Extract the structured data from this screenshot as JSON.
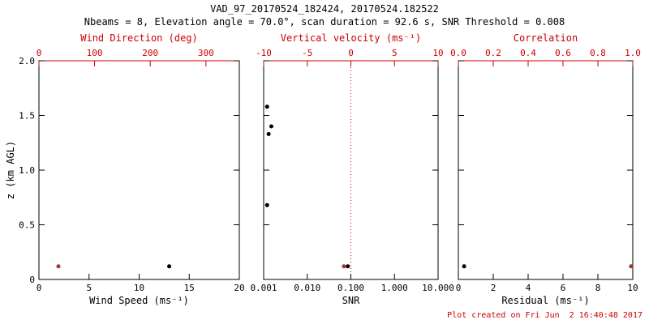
{
  "title": "VAD_97_20170524_182424, 20170524.182522",
  "subtitle": "Nbeams = 8, Elevation angle = 70.0°, scan duration = 92.6 s, SNR Threshold = 0.008",
  "footer_note": "Plot created on Fri Jun  2 16:40:48 2017",
  "colors": {
    "black": "#000000",
    "axis_red": "#cc0000",
    "point_red": "#9e3b2b",
    "background": "#ffffff"
  },
  "chart_data": [
    {
      "type": "scatter",
      "panel": "wind",
      "ylabel": "z (km AGL)",
      "ylim": [
        0,
        2
      ],
      "ytick_values": [
        0,
        0.5,
        1.0,
        1.5,
        2.0
      ],
      "ytick_labels": [
        "0",
        "0.5",
        "1.0",
        "1.5",
        "2.0"
      ],
      "show_ytick_labels": true,
      "grid": false,
      "bottom_axis": {
        "label": "Wind Speed (ms⁻¹)",
        "lim": [
          0,
          20
        ],
        "scale": "linear",
        "ticks": [
          0,
          5,
          10,
          15,
          20
        ],
        "tick_labels": [
          "0",
          "5",
          "10",
          "15",
          "20"
        ]
      },
      "top_axis": {
        "label": "Wind Direction (deg)",
        "lim": [
          0,
          360
        ],
        "scale": "linear",
        "ticks": [
          0,
          100,
          200,
          300
        ],
        "tick_labels": [
          "0",
          "100",
          "200",
          "300"
        ]
      },
      "series": [
        {
          "name": "wind-speed",
          "axis": "bottom",
          "color_key": "black",
          "points": [
            {
              "x": 13.0,
              "z": 0.12
            }
          ]
        },
        {
          "name": "wind-direction",
          "axis": "top",
          "color_key": "point_red",
          "points": [
            {
              "x": 35,
              "z": 0.12
            }
          ]
        }
      ]
    },
    {
      "type": "scatter",
      "panel": "snr",
      "ylabel": "",
      "ylim": [
        0,
        2
      ],
      "ytick_values": [
        0,
        0.5,
        1.0,
        1.5,
        2.0
      ],
      "ytick_labels": [
        "0",
        "0.5",
        "1.0",
        "1.5",
        "2.0"
      ],
      "show_ytick_labels": false,
      "grid": false,
      "bottom_axis": {
        "label": "SNR",
        "lim": [
          0.001,
          10
        ],
        "scale": "log",
        "ticks": [
          0.001,
          0.01,
          0.1,
          1,
          10
        ],
        "tick_labels": [
          "0.001",
          "0.010",
          "0.100",
          "1.000",
          "10.000"
        ]
      },
      "top_axis": {
        "label": "Vertical velocity (ms⁻¹)",
        "lim": [
          -10,
          10
        ],
        "scale": "linear",
        "ticks": [
          -10,
          -5,
          0,
          5,
          10
        ],
        "tick_labels": [
          "-10",
          "-5",
          "0",
          "5",
          "10"
        ]
      },
      "reference_line": {
        "axis": "top",
        "value": 0,
        "style": "dotted",
        "color_key": "axis_red"
      },
      "series": [
        {
          "name": "snr",
          "axis": "bottom",
          "color_key": "black",
          "points": [
            {
              "x": 0.0012,
              "z": 1.58
            },
            {
              "x": 0.0015,
              "z": 1.4
            },
            {
              "x": 0.0013,
              "z": 1.33
            },
            {
              "x": 0.0012,
              "z": 0.68
            },
            {
              "x": 0.085,
              "z": 0.12
            }
          ]
        },
        {
          "name": "vertical-velocity",
          "axis": "top",
          "color_key": "point_red",
          "points": [
            {
              "x": -0.8,
              "z": 0.12
            }
          ]
        }
      ]
    },
    {
      "type": "scatter",
      "panel": "residual",
      "ylabel": "",
      "ylim": [
        0,
        2
      ],
      "ytick_values": [
        0,
        0.5,
        1.0,
        1.5,
        2.0
      ],
      "ytick_labels": [
        "0",
        "0.5",
        "1.0",
        "1.5",
        "2.0"
      ],
      "show_ytick_labels": false,
      "grid": false,
      "bottom_axis": {
        "label": "Residual (ms⁻¹)",
        "lim": [
          0,
          10
        ],
        "scale": "linear",
        "ticks": [
          0,
          2,
          4,
          6,
          8,
          10
        ],
        "tick_labels": [
          "0",
          "2",
          "4",
          "6",
          "8",
          "10"
        ]
      },
      "top_axis": {
        "label": "Correlation",
        "lim": [
          0,
          1
        ],
        "scale": "linear",
        "ticks": [
          0,
          0.2,
          0.4,
          0.6,
          0.8,
          1.0
        ],
        "tick_labels": [
          "0.0",
          "0.2",
          "0.4",
          "0.6",
          "0.8",
          "1.0"
        ]
      },
      "series": [
        {
          "name": "residual",
          "axis": "bottom",
          "color_key": "black",
          "points": [
            {
              "x": 0.33,
              "z": 0.12
            }
          ]
        },
        {
          "name": "correlation",
          "axis": "top",
          "color_key": "point_red",
          "points": [
            {
              "x": 0.99,
              "z": 0.12
            }
          ]
        }
      ]
    }
  ]
}
